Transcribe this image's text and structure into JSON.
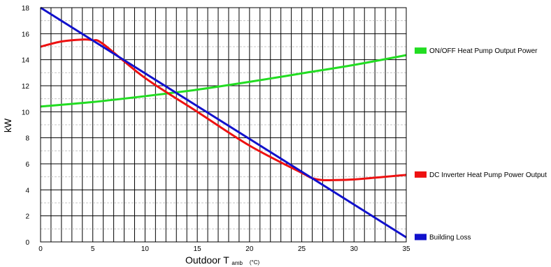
{
  "chart_data": {
    "type": "line",
    "xlabel": "Outdoor T",
    "xlabel_sub": "amb",
    "xlabel_unit": "(°C)",
    "ylabel": "kW",
    "xlim": [
      0,
      35
    ],
    "ylim": [
      0,
      18
    ],
    "x_ticks": [
      0,
      5,
      10,
      15,
      20,
      25,
      30,
      35
    ],
    "y_ticks": [
      0,
      2,
      4,
      6,
      8,
      10,
      12,
      14,
      16,
      18
    ],
    "x_minor_step": 1,
    "y_minor_step": 1,
    "grid": true,
    "legend_position": "right",
    "series": [
      {
        "name": "ON/OFF Heat Pump Output Power",
        "color": "#22dd22",
        "x": [
          0,
          5,
          10,
          15,
          20,
          25,
          30,
          35
        ],
        "y": [
          10.4,
          10.75,
          11.2,
          11.7,
          12.3,
          12.95,
          13.6,
          14.35
        ]
      },
      {
        "name": "DC Inverter Heat Pump Power Output",
        "color": "#ee1111",
        "x": [
          0,
          2,
          4,
          5,
          6,
          10,
          15,
          20,
          25,
          26,
          27,
          28,
          30,
          35
        ],
        "y": [
          15.0,
          15.4,
          15.55,
          15.5,
          15.2,
          12.6,
          10.0,
          7.4,
          5.3,
          4.9,
          4.75,
          4.75,
          4.8,
          5.15
        ]
      },
      {
        "name": "Building Loss",
        "color": "#1111cc",
        "x": [
          0,
          35
        ],
        "y": [
          18,
          0.35
        ]
      }
    ]
  }
}
